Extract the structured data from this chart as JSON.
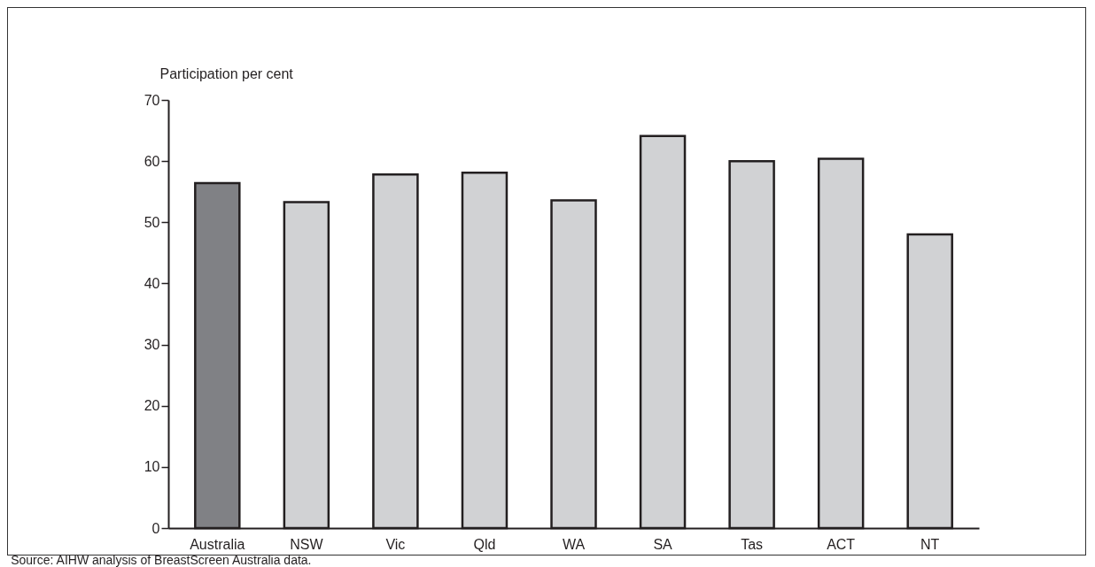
{
  "chart_data": {
    "type": "bar",
    "ylabel": "Participation per cent",
    "categories": [
      "Australia",
      "NSW",
      "Vic",
      "Qld",
      "WA",
      "SA",
      "Tas",
      "ACT",
      "NT"
    ],
    "values": [
      56.4,
      53.3,
      57.8,
      58.1,
      53.6,
      64.1,
      60.0,
      60.4,
      48.0
    ],
    "colors": [
      "#808185",
      "#d1d2d4",
      "#d1d2d4",
      "#d1d2d4",
      "#d1d2d4",
      "#d1d2d4",
      "#d1d2d4",
      "#d1d2d4",
      "#d1d2d4"
    ],
    "ylim": [
      0,
      70
    ],
    "yticks": [
      0,
      10,
      20,
      30,
      40,
      50,
      60,
      70
    ],
    "grid": false,
    "annotations": [
      "Source: AIHW analysis of BreastScreen Australia data."
    ]
  }
}
